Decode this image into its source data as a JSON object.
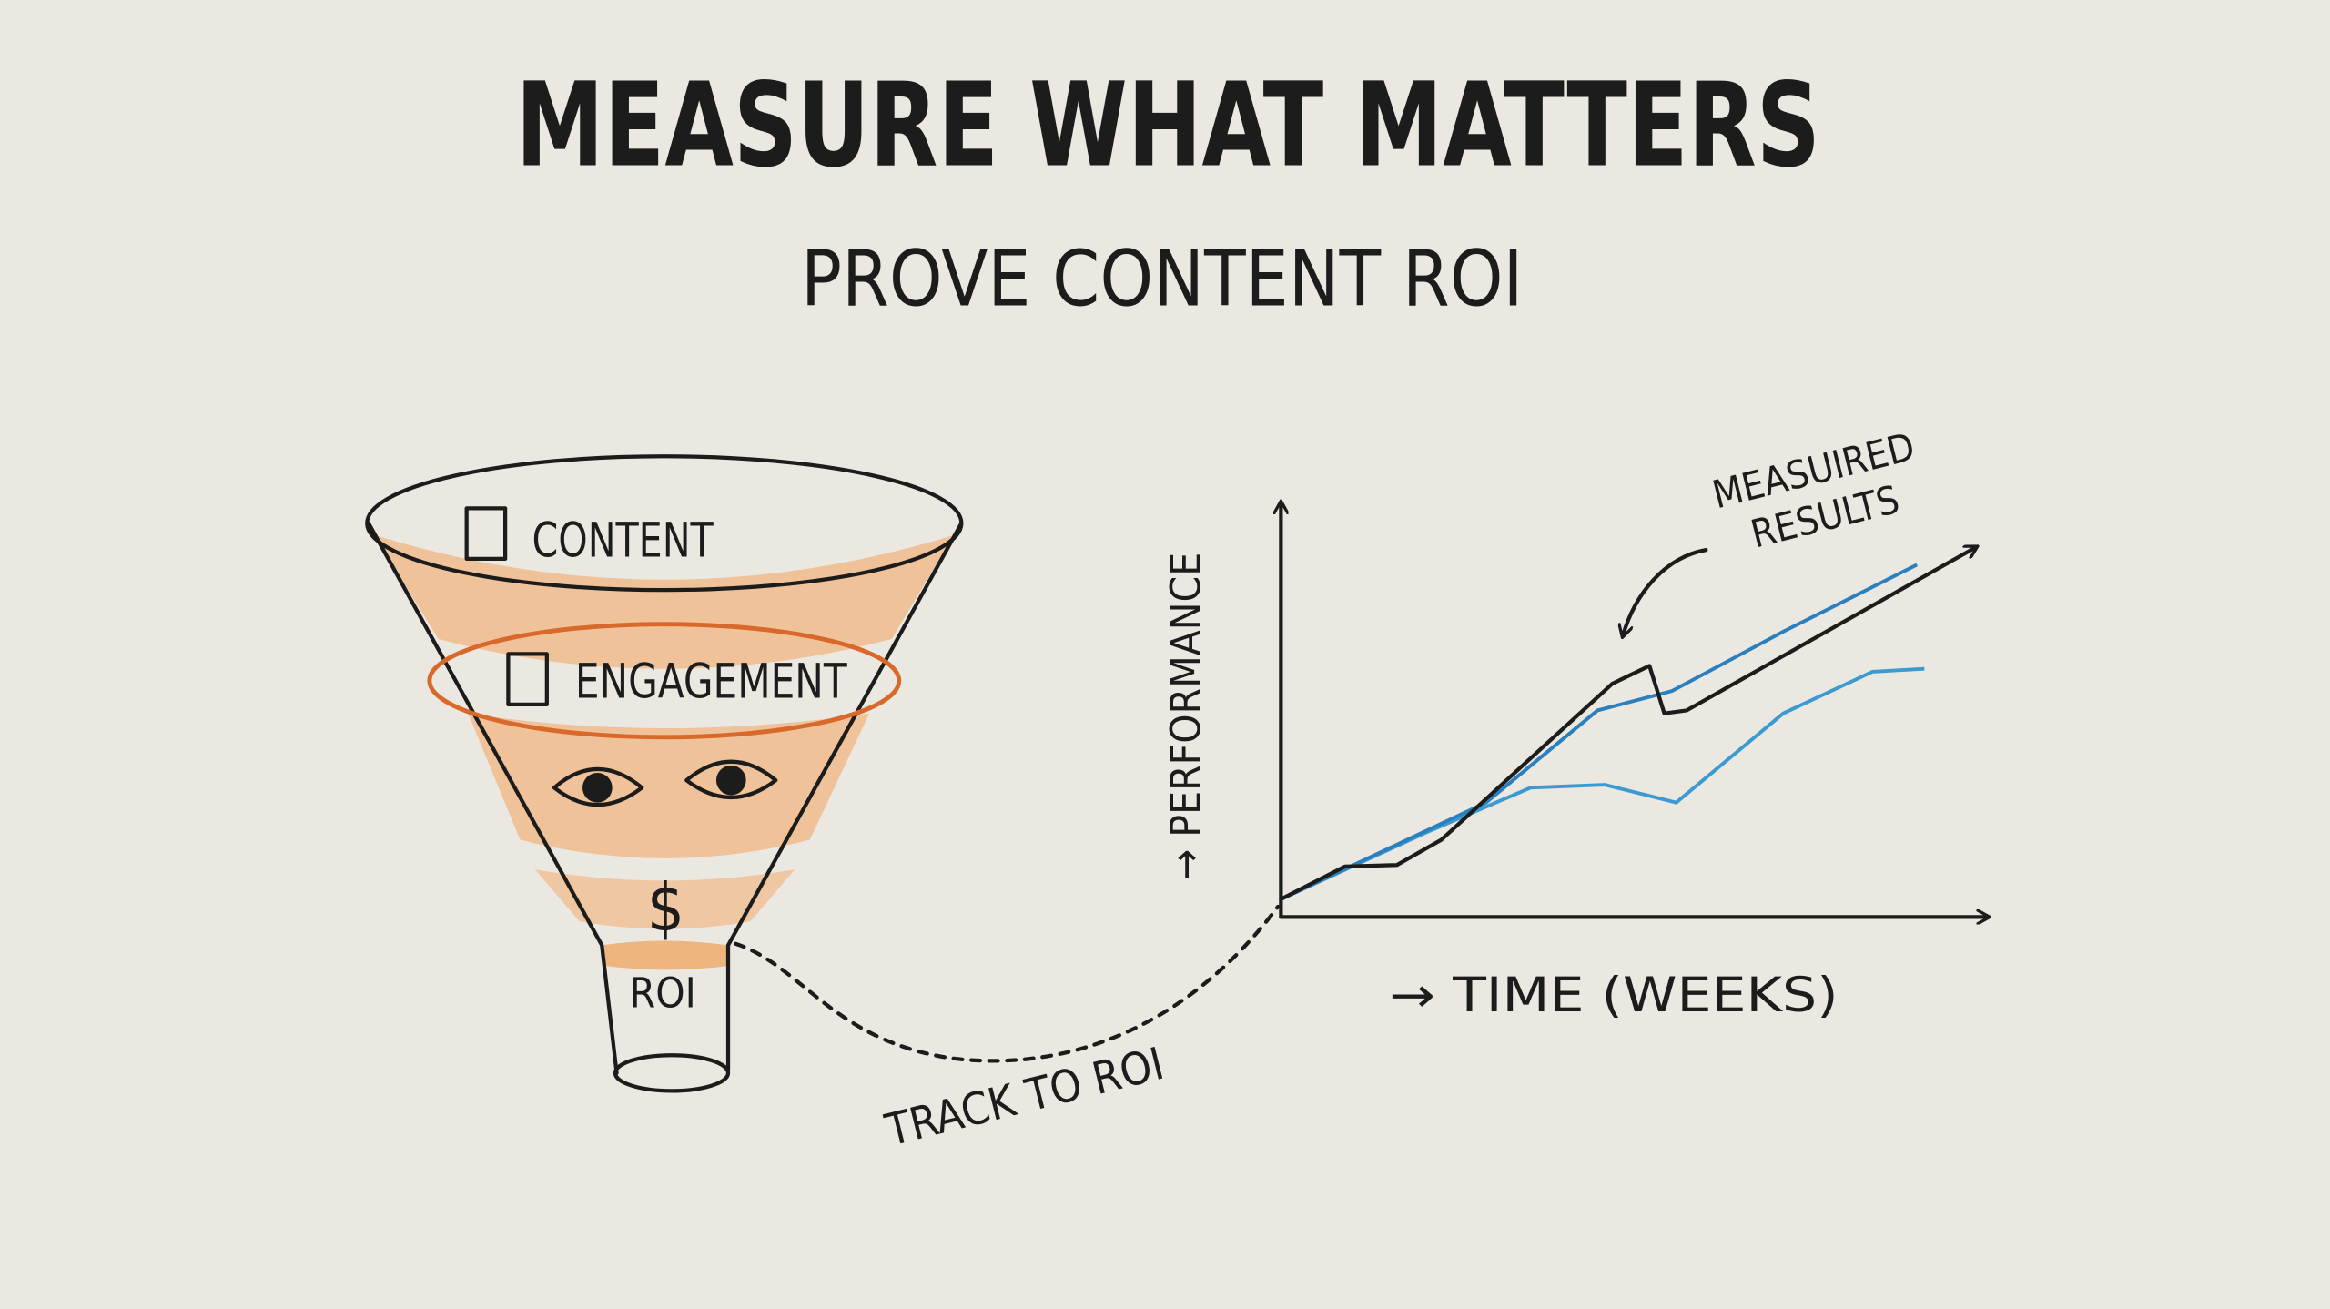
{
  "header": {
    "title": "MEASURE WHAT MATTERS",
    "subtitle": "PROVE CONTENT ROI"
  },
  "funnel": {
    "stages": [
      "CONTENT",
      "ENGAGEMENT",
      "$",
      "ROI"
    ]
  },
  "connector_label": "TRACK TO ROI",
  "performance_sketch": {
    "y_axis_label": "→ PERFORMANCE",
    "x_axis_label": "→ TIME (WEEKS)",
    "annotation": [
      "MEASUIRED",
      "RESULTS"
    ]
  }
}
